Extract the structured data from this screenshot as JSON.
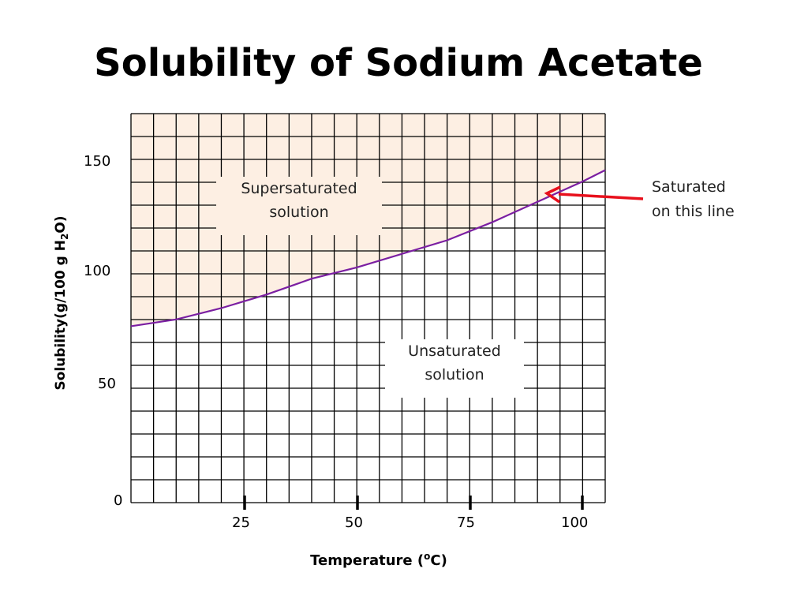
{
  "chart_data": {
    "type": "line",
    "title": "Solubility of Sodium Acetate",
    "xlabel_main": "Temperature (",
    "xlabel_sup": "o",
    "xlabel_end": "C)",
    "ylabel_main": "Solubility(g/100 g H",
    "ylabel_sub": "2",
    "ylabel_end": "O)",
    "x_ticks": [
      "25",
      "50",
      "75",
      "100"
    ],
    "y_ticks": [
      "0",
      "50",
      "100",
      "150"
    ],
    "xlim": [
      0,
      105
    ],
    "ylim": [
      0,
      172
    ],
    "grid": true,
    "series": [
      {
        "x": [
          0,
          10,
          20,
          30,
          40,
          50,
          60,
          70,
          80,
          90,
          100,
          105
        ],
        "y": [
          78,
          81,
          86,
          92,
          99,
          104,
          110,
          116,
          124,
          133,
          142,
          147
        ]
      }
    ],
    "regions": {
      "above": "Supersaturated solution",
      "below": "Unsaturated solution"
    },
    "region_labels": {
      "super_line1": "Supersaturated",
      "super_line2": "solution",
      "unsat_line1": "Unsaturated",
      "unsat_line2": "solution"
    },
    "annotation": {
      "line1": "Saturated",
      "line2": "on this line"
    },
    "colors": {
      "curve": "#7b1fa2",
      "super_fill": "#fdefe3",
      "arrow": "#e8101c",
      "grid": "#000000"
    }
  }
}
